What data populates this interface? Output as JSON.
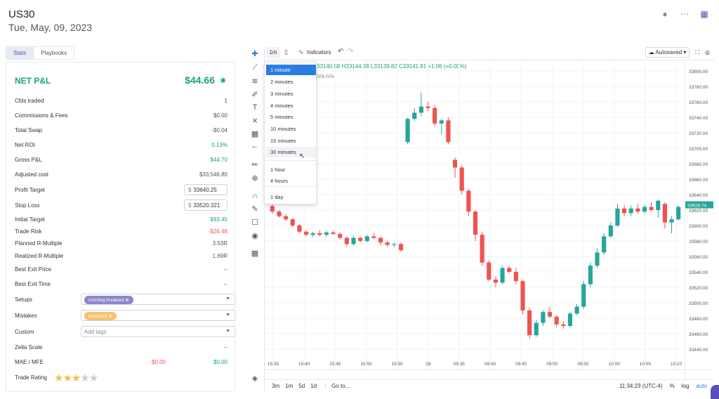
{
  "header": {
    "title": "US30",
    "date": "Tue, May, 09, 2023"
  },
  "tabs": [
    {
      "label": "Stats",
      "active": true
    },
    {
      "label": "Playbooks",
      "active": false
    }
  ],
  "stats": {
    "title": "NET P&L",
    "value": "$44.66",
    "rows": {
      "cfds": {
        "label": "Cfds traded",
        "value": "1"
      },
      "commissions": {
        "label": "Commissions & Fees",
        "value": "$0.00"
      },
      "swap": {
        "label": "Total Swap",
        "value": "-$0.04"
      },
      "roi": {
        "label": "Net ROI",
        "value": "0.13%"
      },
      "gross": {
        "label": "Gross P&L",
        "value": "$44.70"
      },
      "adjusted": {
        "label": "Adjusted cost",
        "value": "$33,546.80"
      },
      "profit_target": {
        "label": "Profit Target",
        "currency": "$",
        "value": "33640.25"
      },
      "stop_loss": {
        "label": "Stop Loss",
        "currency": "$",
        "value": "33520.321"
      },
      "initial_target": {
        "label": "Initial Target",
        "value": "$93.45"
      },
      "trade_risk": {
        "label": "Trade Risk",
        "value": "-$26.48"
      },
      "planned_r": {
        "label": "Planned R-Multiple",
        "value": "3.53R"
      },
      "realized_r": {
        "label": "Realized R-Multiple",
        "value": "1.69R"
      },
      "best_exit_price": {
        "label": "Best Exit Price",
        "value": "--"
      },
      "best_exit_time": {
        "label": "Best Exit Time",
        "value": "--"
      },
      "setups": {
        "label": "Setups",
        "tag": "morning breakout"
      },
      "mistakes": {
        "label": "Mistakes",
        "tag": "hesitated"
      },
      "custom": {
        "label": "Custom",
        "placeholder": "Add tags"
      },
      "zella": {
        "label": "Zella Scale",
        "value": "--"
      },
      "mae_mfe": {
        "label": "MAE / MFE",
        "mae": "$0.00",
        "mfe": "$0.00"
      },
      "rating": {
        "label": "Trade Rating",
        "stars": 2.5,
        "max": 5
      }
    }
  },
  "chart_toolbar": {
    "interval": "1m",
    "indicators_label": "Indicators",
    "autosave_label": "Autosaved"
  },
  "ohlc": {
    "text": "33140.58  H33144.38  L33139.82  C33141.81  +1.06 (+0.00%)",
    "na": "n/a  n/a"
  },
  "interval_menu": {
    "items": [
      "1 minute",
      "2 minutes",
      "3 minutes",
      "4 minutes",
      "5 minutes",
      "10 minutes",
      "15 minutes",
      "30 minutes",
      "1 hour",
      "4 hours",
      "1 day"
    ],
    "selected": "1 minute",
    "hovered": "30 minutes"
  },
  "bottom_bar": {
    "ranges": [
      "3m",
      "1m",
      "5d",
      "1d"
    ],
    "goto": "Go to...",
    "time": "11:34:23 (UTC-4)",
    "pct": "%",
    "log": "log",
    "auto": "auto"
  },
  "chart_data": {
    "type": "candlestick",
    "xlabels": [
      "15:35",
      "15:40",
      "15:45",
      "15:50",
      "15:55",
      "18",
      "09:35",
      "09:40",
      "09:45",
      "09:50",
      "09:55",
      "10:00",
      "10:05",
      "10:10"
    ],
    "ylim": [
      33430,
      33810
    ],
    "yticks": [
      33800,
      33780,
      33760,
      33740,
      33720,
      33700,
      33680,
      33660,
      33640,
      33620,
      33600,
      33580,
      33560,
      33540,
      33520,
      33500,
      33480,
      33460,
      33440
    ],
    "last_price": "33626.74",
    "candles": [
      [
        33625,
        33628,
        33615,
        33618
      ],
      [
        33618,
        33620,
        33610,
        33612
      ],
      [
        33612,
        33615,
        33606,
        33608
      ],
      [
        33608,
        33610,
        33598,
        33600
      ],
      [
        33600,
        33602,
        33590,
        33592
      ],
      [
        33592,
        33594,
        33586,
        33588
      ],
      [
        33588,
        33592,
        33585,
        33590
      ],
      [
        33590,
        33594,
        33586,
        33588
      ],
      [
        33588,
        33593,
        33585,
        33591
      ],
      [
        33591,
        33593,
        33588,
        33589
      ],
      [
        33589,
        33591,
        33582,
        33584
      ],
      [
        33584,
        33586,
        33572,
        33576
      ],
      [
        33576,
        33586,
        33574,
        33584
      ],
      [
        33584,
        33586,
        33578,
        33580
      ],
      [
        33580,
        33588,
        33578,
        33586
      ],
      [
        33586,
        33590,
        33582,
        33584
      ],
      [
        33584,
        33586,
        33574,
        33578
      ],
      [
        33578,
        33580,
        33572,
        33575
      ],
      [
        33575,
        33578,
        33572,
        33576
      ],
      [
        33576,
        33578,
        33566,
        33568
      ],
      [
        33708,
        33740,
        33705,
        33738
      ],
      [
        33738,
        33752,
        33735,
        33746
      ],
      [
        33746,
        33772,
        33742,
        33754
      ],
      [
        33754,
        33760,
        33748,
        33752
      ],
      [
        33752,
        33756,
        33728,
        33732
      ],
      [
        33732,
        33738,
        33718,
        33736
      ],
      [
        33736,
        33740,
        33705,
        33708
      ],
      [
        33685,
        33688,
        33662,
        33675
      ],
      [
        33675,
        33678,
        33640,
        33645
      ],
      [
        33645,
        33648,
        33612,
        33618
      ],
      [
        33618,
        33620,
        33580,
        33588
      ],
      [
        33588,
        33592,
        33548,
        33552
      ],
      [
        33552,
        33555,
        33528,
        33530
      ],
      [
        33530,
        33534,
        33520,
        33526
      ],
      [
        33526,
        33548,
        33524,
        33545
      ],
      [
        33545,
        33548,
        33538,
        33540
      ],
      [
        33540,
        33545,
        33524,
        33528
      ],
      [
        33528,
        33530,
        33485,
        33490
      ],
      [
        33490,
        33494,
        33454,
        33458
      ],
      [
        33458,
        33478,
        33456,
        33474
      ],
      [
        33474,
        33490,
        33470,
        33488
      ],
      [
        33488,
        33495,
        33480,
        33482
      ],
      [
        33482,
        33484,
        33468,
        33472
      ],
      [
        33472,
        33476,
        33466,
        33470
      ],
      [
        33470,
        33488,
        33468,
        33486
      ],
      [
        33486,
        33498,
        33484,
        33495
      ],
      [
        33495,
        33528,
        33492,
        33524
      ],
      [
        33524,
        33552,
        33520,
        33548
      ],
      [
        33548,
        33570,
        33545,
        33565
      ],
      [
        33565,
        33590,
        33562,
        33586
      ],
      [
        33586,
        33604,
        33584,
        33600
      ],
      [
        33600,
        33628,
        33598,
        33622
      ],
      [
        33622,
        33626,
        33612,
        33616
      ],
      [
        33616,
        33626,
        33612,
        33622
      ],
      [
        33622,
        33628,
        33615,
        33618
      ],
      [
        33618,
        33627,
        33615,
        33624
      ],
      [
        33624,
        33630,
        33618,
        33620
      ],
      [
        33620,
        33634,
        33610,
        33632
      ],
      [
        33628,
        33630,
        33596,
        33604
      ],
      [
        33604,
        33612,
        33590,
        33608
      ],
      [
        33608,
        33626,
        33606,
        33624
      ]
    ]
  }
}
